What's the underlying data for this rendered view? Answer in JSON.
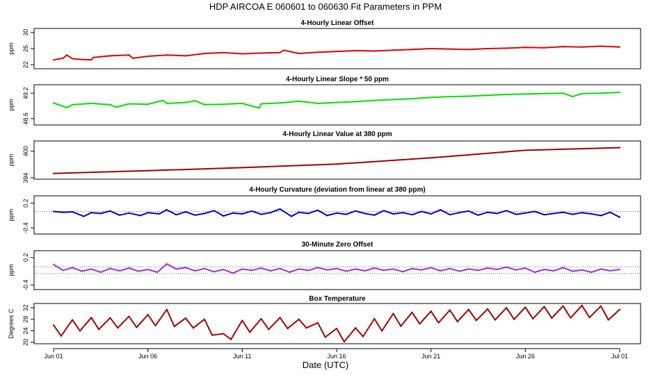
{
  "figure": {
    "title": "HDP   AIRCOA E   060601 to 060630   Fit Parameters in PPM",
    "x_axis_title": "Date (UTC)",
    "x_ticks": [
      "Jun 01",
      "Jun 06",
      "Jun 11",
      "Jun 16",
      "Jun 21",
      "Jun 26",
      "Jul 01"
    ],
    "x_range_days": [
      0,
      30
    ]
  },
  "chart_data": [
    {
      "type": "line",
      "title": "4-Hourly Linear Offset",
      "ylabel": "ppm",
      "ylim": [
        21,
        31
      ],
      "yticks": [
        22,
        26,
        30
      ],
      "color": "#e00000",
      "grid": false,
      "x": [
        0,
        0.5,
        0.7,
        1,
        1.5,
        2,
        2.1,
        3,
        4,
        4.2,
        5,
        6,
        7,
        8,
        9,
        10,
        11,
        12,
        12.2,
        13,
        14,
        15,
        16,
        17,
        18,
        19,
        20,
        21,
        22,
        23,
        24,
        25,
        26,
        27,
        28,
        29,
        30
      ],
      "values": [
        23.2,
        23.6,
        24.4,
        23.5,
        23.3,
        23.2,
        23.8,
        24.2,
        24.4,
        23.6,
        24.1,
        24.4,
        24.2,
        24.8,
        25.0,
        24.7,
        24.9,
        25.0,
        25.6,
        24.8,
        25.1,
        25.3,
        25.5,
        25.4,
        25.6,
        25.8,
        26.0,
        25.9,
        25.8,
        26.0,
        26.1,
        26.3,
        26.2,
        26.5,
        26.4,
        26.6,
        26.4
      ]
    },
    {
      "type": "line",
      "title": "4-Hourly Linear Slope * 50 ppm",
      "ylabel": "ppm",
      "ylim": [
        48.45,
        49.4
      ],
      "yticks": [
        48.6,
        49.2
      ],
      "ytick_labels": [
        "48.6",
        "49.2"
      ],
      "color": "#00e000",
      "grid": false,
      "x": [
        0,
        0.7,
        1,
        2,
        3,
        3.3,
        4,
        5,
        5.8,
        6,
        7,
        7.5,
        8,
        9,
        10,
        10.9,
        11,
        12,
        13,
        14,
        15,
        16,
        17,
        18,
        19,
        20,
        21,
        22,
        23,
        24,
        25,
        26,
        27,
        27.5,
        28,
        29,
        30
      ],
      "values": [
        48.97,
        48.86,
        48.93,
        48.96,
        48.93,
        48.87,
        48.95,
        48.94,
        49.03,
        48.96,
        48.98,
        49.02,
        48.93,
        48.94,
        48.96,
        48.85,
        48.95,
        48.97,
        49.01,
        48.96,
        48.98,
        49.0,
        49.03,
        49.05,
        49.07,
        49.1,
        49.12,
        49.13,
        49.15,
        49.17,
        49.18,
        49.19,
        49.2,
        49.12,
        49.19,
        49.2,
        49.22
      ]
    },
    {
      "type": "line",
      "title": "4-Hourly Linear Value at 380 ppm",
      "ylabel": "ppm",
      "ylim": [
        393.7,
        402.3
      ],
      "yticks": [
        394,
        400
      ],
      "color": "#a00000",
      "grid": false,
      "x": [
        0,
        5,
        10,
        15,
        20,
        25,
        30
      ],
      "values": [
        395.0,
        395.6,
        396.3,
        397.1,
        398.5,
        400.2,
        400.8
      ]
    },
    {
      "type": "line",
      "title": "4-Hourly Curvature (deviation from linear at 380 ppm)",
      "ylabel": "ppm",
      "ylim": [
        -0.55,
        0.38
      ],
      "yticks": [
        -0.4,
        0.2
      ],
      "ytick_labels": [
        "-0.4",
        "0.2"
      ],
      "color": "#0000d0",
      "grid": false,
      "x": [
        0,
        0.5,
        1,
        1.6,
        2,
        2.5,
        3,
        3.5,
        4,
        4.6,
        5,
        5.6,
        6,
        6.5,
        7,
        7.5,
        8,
        8.5,
        9,
        9.5,
        10,
        10.5,
        11,
        11.5,
        12,
        12.6,
        13,
        13.5,
        14,
        14.5,
        15,
        15.5,
        16,
        16.5,
        17,
        17.5,
        18,
        18.5,
        19,
        19.5,
        20,
        20.5,
        21,
        21.5,
        22,
        22.5,
        23,
        23.5,
        24,
        24.5,
        25,
        25.5,
        26,
        26.5,
        27,
        27.5,
        28,
        28.5,
        29,
        29.5,
        30
      ],
      "values": [
        0.0,
        -0.02,
        -0.01,
        -0.12,
        -0.03,
        -0.05,
        0.01,
        -0.09,
        -0.04,
        -0.1,
        -0.03,
        -0.06,
        0.04,
        -0.08,
        -0.01,
        -0.09,
        -0.05,
        0.02,
        -0.11,
        -0.04,
        -0.06,
        0.01,
        -0.07,
        -0.03,
        0.06,
        -0.12,
        -0.02,
        -0.05,
        0.03,
        -0.1,
        -0.04,
        -0.07,
        0.01,
        -0.05,
        -0.09,
        0.02,
        -0.06,
        -0.03,
        -0.08,
        0.0,
        -0.06,
        0.04,
        -0.08,
        -0.03,
        0.01,
        -0.09,
        -0.02,
        -0.05,
        0.02,
        -0.07,
        -0.04,
        0.0,
        -0.08,
        -0.05,
        -0.02,
        -0.07,
        -0.03,
        -0.06,
        -0.1,
        -0.02,
        -0.14
      ],
      "reference_line": 0.0
    },
    {
      "type": "line",
      "title": "30-Minute Zero Offset",
      "ylabel": "ppm",
      "ylim": [
        -0.5,
        0.35
      ],
      "yticks": [
        -0.4,
        0.2
      ],
      "ytick_labels": [
        "-0.4",
        "0.2"
      ],
      "color": "#9a30e0",
      "grid": false,
      "x": [
        0,
        0.5,
        1,
        1.5,
        2,
        2.5,
        3,
        3.5,
        4,
        4.5,
        5,
        5.5,
        6,
        6.5,
        7,
        7.5,
        8,
        8.5,
        9,
        9.5,
        10,
        10.5,
        11,
        11.5,
        12,
        12.5,
        13,
        13.5,
        14,
        14.5,
        15,
        15.5,
        16,
        16.5,
        17,
        17.5,
        18,
        18.5,
        19,
        19.5,
        20,
        20.5,
        21,
        21.5,
        22,
        22.5,
        23,
        23.5,
        24,
        24.5,
        25,
        25.5,
        26,
        26.5,
        27,
        27.5,
        28,
        28.5,
        29,
        29.5,
        30
      ],
      "values": [
        0.05,
        -0.08,
        -0.02,
        -0.1,
        -0.05,
        -0.12,
        -0.04,
        -0.09,
        -0.03,
        -0.1,
        -0.06,
        -0.12,
        0.06,
        -0.05,
        -0.02,
        -0.09,
        -0.04,
        -0.11,
        -0.06,
        -0.14,
        -0.05,
        -0.08,
        -0.03,
        -0.09,
        -0.04,
        -0.12,
        -0.05,
        -0.08,
        -0.02,
        -0.07,
        -0.04,
        -0.1,
        -0.05,
        -0.09,
        -0.03,
        -0.08,
        -0.05,
        -0.11,
        -0.04,
        -0.07,
        -0.02,
        -0.09,
        -0.04,
        -0.1,
        -0.05,
        -0.08,
        -0.03,
        -0.06,
        -0.01,
        -0.07,
        -0.03,
        -0.12,
        -0.06,
        -0.09,
        -0.02,
        -0.1,
        -0.07,
        -0.12,
        -0.05,
        -0.09,
        -0.06
      ],
      "reference_lines": [
        0.0,
        -0.15
      ]
    },
    {
      "type": "line",
      "title": "Box Temperature",
      "ylabel": "Degrees C",
      "ylim": [
        19.5,
        33.5
      ],
      "yticks": [
        20,
        24,
        28,
        32
      ],
      "color": "#a00000",
      "grid": false,
      "x": [
        0,
        0.4,
        1,
        1.4,
        2,
        2.4,
        3,
        3.4,
        4,
        4.4,
        5,
        5.4,
        6,
        6.4,
        7,
        7.4,
        8,
        8.4,
        9,
        9.4,
        10,
        10.4,
        11,
        11.4,
        12,
        12.4,
        13,
        13.4,
        14,
        14.4,
        15,
        15.4,
        16,
        16.4,
        17,
        17.4,
        18,
        18.4,
        19,
        19.4,
        20,
        20.4,
        21,
        21.4,
        22,
        22.4,
        23,
        23.4,
        24,
        24.4,
        25,
        25.4,
        26,
        26.4,
        27,
        27.4,
        28,
        28.4,
        29,
        29.4,
        30
      ],
      "values": [
        26.0,
        22.2,
        27.8,
        24.0,
        28.6,
        24.5,
        28.5,
        25.0,
        29.0,
        25.2,
        29.6,
        25.8,
        31.4,
        25.5,
        28.4,
        25.0,
        28.0,
        22.5,
        23.0,
        21.0,
        27.6,
        23.5,
        28.2,
        24.5,
        28.6,
        24.8,
        28.0,
        25.0,
        26.8,
        21.8,
        24.8,
        20.2,
        25.0,
        22.0,
        28.2,
        24.0,
        30.0,
        25.6,
        30.4,
        26.4,
        30.8,
        26.8,
        31.2,
        27.2,
        31.4,
        27.6,
        31.6,
        27.8,
        32.0,
        28.0,
        32.2,
        28.2,
        32.4,
        28.4,
        32.6,
        28.5,
        32.8,
        28.6,
        32.6,
        27.8,
        31.4
      ]
    }
  ]
}
